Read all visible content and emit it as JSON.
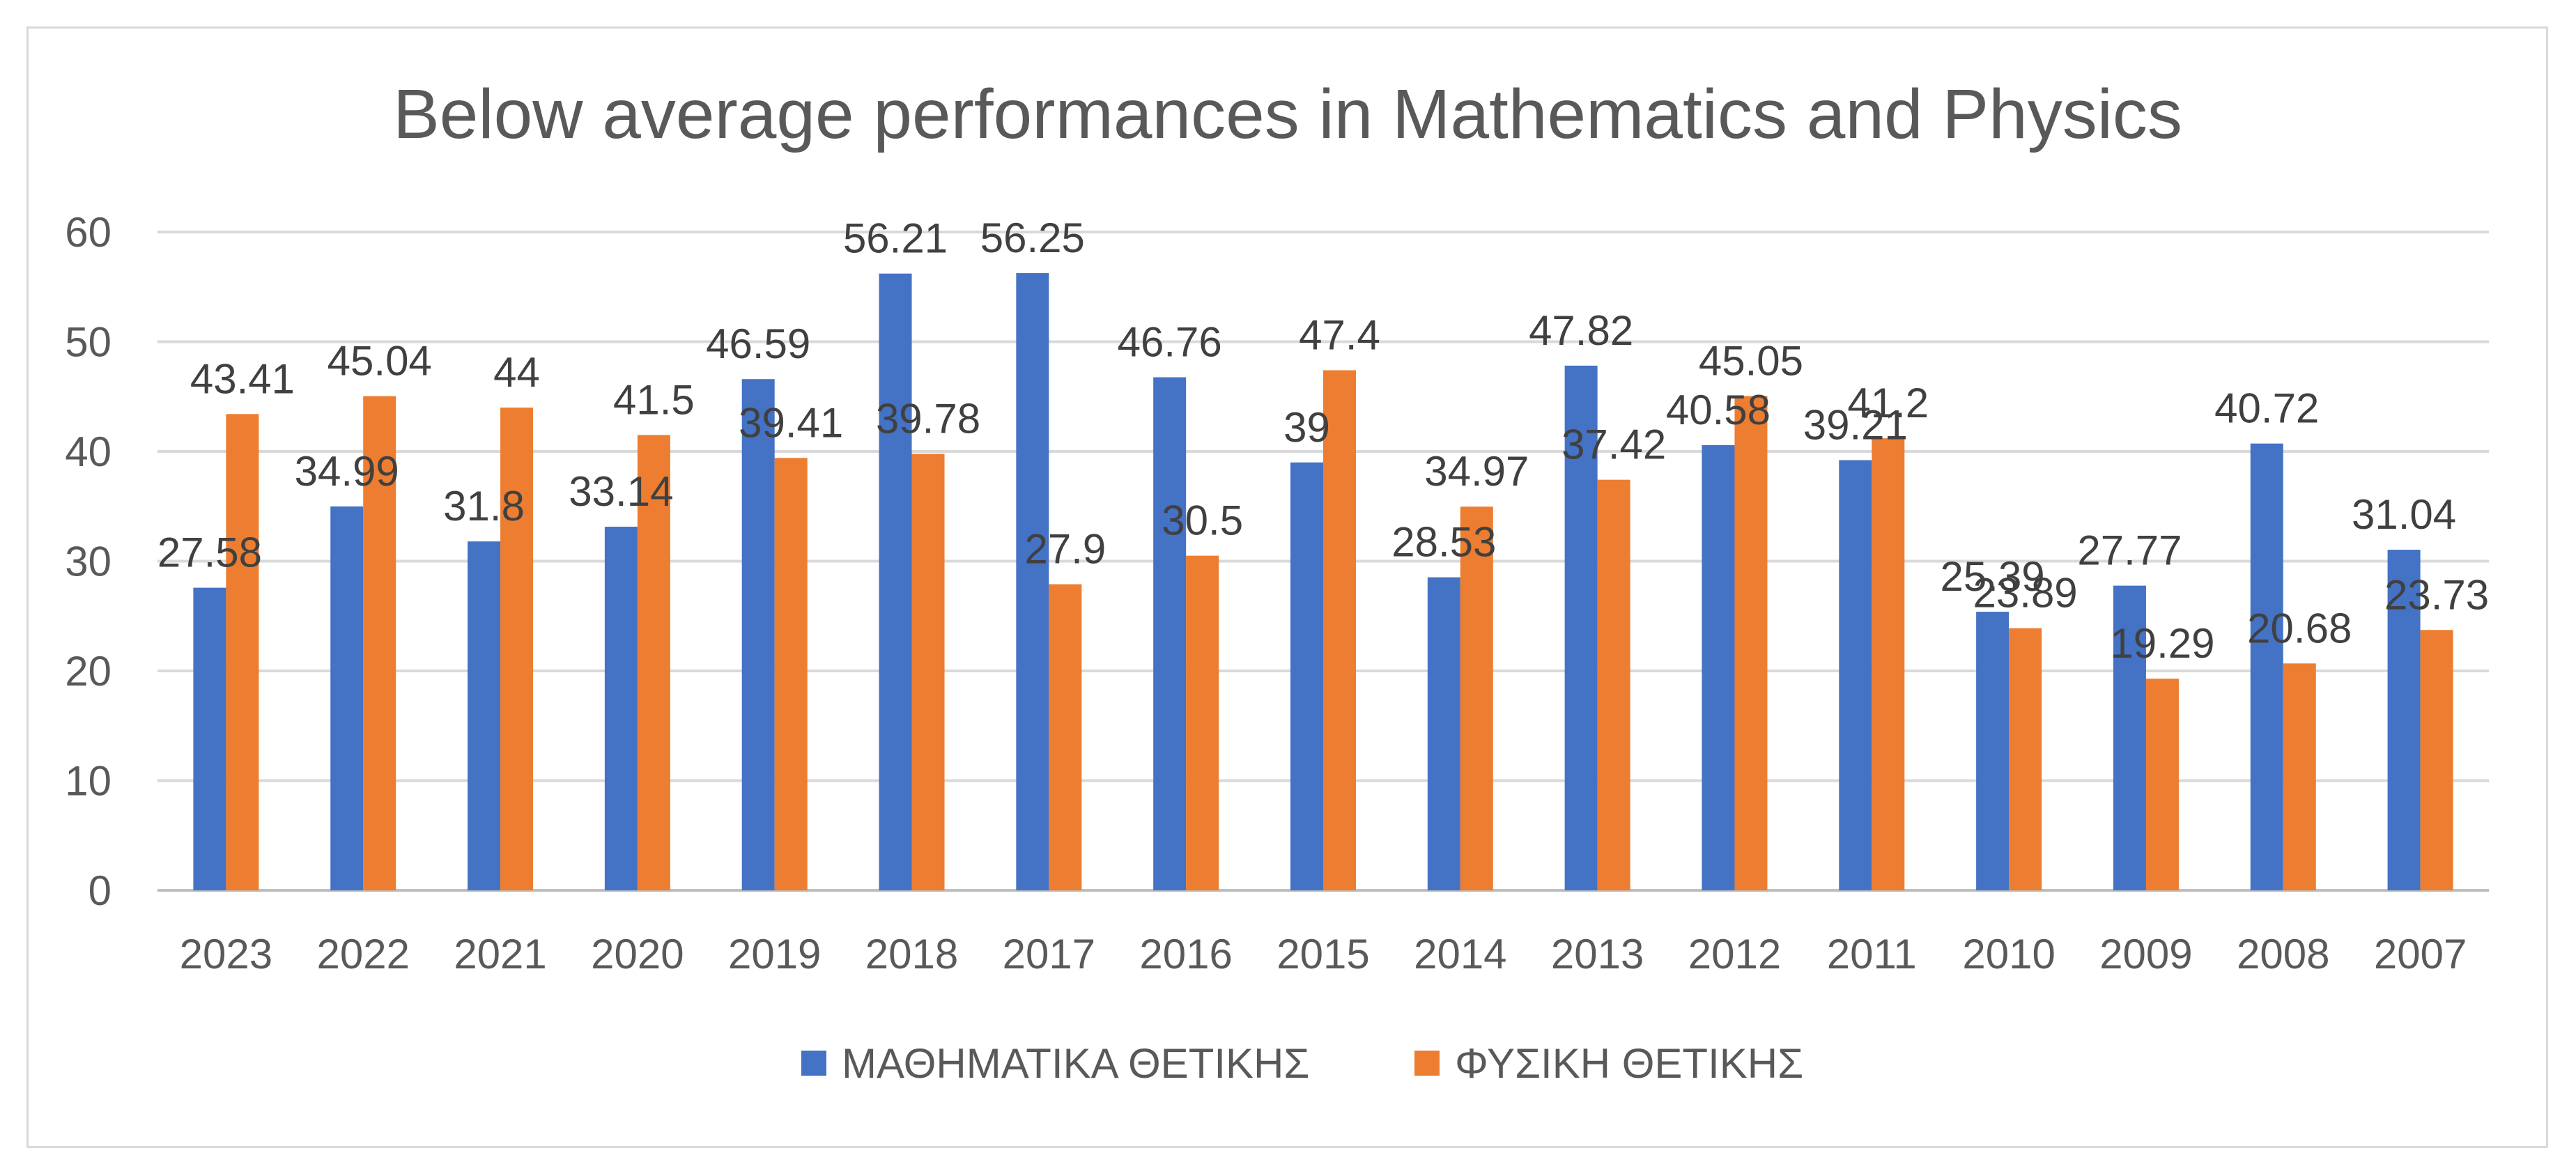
{
  "chart_data": {
    "type": "bar",
    "title": "Below average performances in Mathematics and Physics",
    "xlabel": "",
    "ylabel": "",
    "ylim": [
      0,
      60
    ],
    "yticks": [
      0,
      10,
      20,
      30,
      40,
      50,
      60
    ],
    "grid": true,
    "legend_position": "bottom",
    "categories": [
      "2023",
      "2022",
      "2021",
      "2020",
      "2019",
      "2018",
      "2017",
      "2016",
      "2015",
      "2014",
      "2013",
      "2012",
      "2011",
      "2010",
      "2009",
      "2008",
      "2007"
    ],
    "series": [
      {
        "name": "ΜΑΘΗΜΑΤΙΚΑ ΘΕΤΙΚΗΣ",
        "color": "#4472c4",
        "values": [
          27.58,
          34.99,
          31.8,
          33.14,
          46.59,
          56.21,
          56.25,
          46.76,
          39,
          28.53,
          47.82,
          40.58,
          39.21,
          25.39,
          27.77,
          40.72,
          31.04
        ]
      },
      {
        "name": "ΦΥΣΙΚΗ ΘΕΤΙΚΗΣ",
        "color": "#ed7d31",
        "values": [
          43.41,
          45.04,
          44,
          41.5,
          39.41,
          39.78,
          27.9,
          30.5,
          47.4,
          34.97,
          37.42,
          45.05,
          41.2,
          23.89,
          19.29,
          20.68,
          23.73
        ]
      }
    ]
  }
}
